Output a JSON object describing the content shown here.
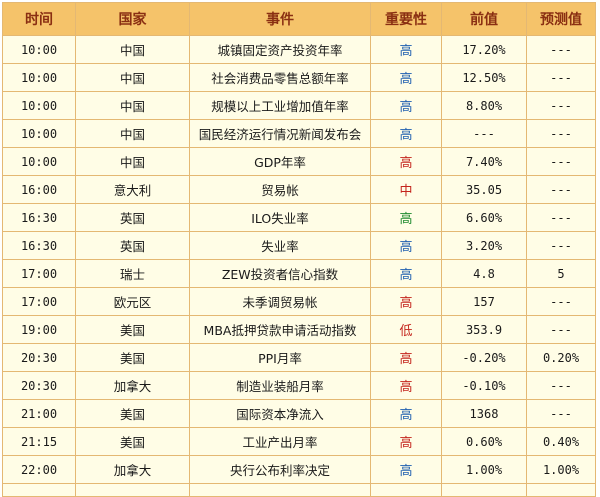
{
  "headers": {
    "time": "时间",
    "country": "国家",
    "event": "事件",
    "importance": "重要性",
    "previous": "前值",
    "forecast": "预测值"
  },
  "importance_colors": {
    "高-blue": "#1f5fb0",
    "高-red": "#c4241c",
    "高-green": "#1e8a2e",
    "中": "#c4241c",
    "低": "#c4241c"
  },
  "rows": [
    {
      "time": "10:00",
      "country": "中国",
      "event": "城镇固定资产投资年率",
      "importance": "高",
      "importance_color": "#1f5fb0",
      "previous": "17.20%",
      "forecast": "---"
    },
    {
      "time": "10:00",
      "country": "中国",
      "event": "社会消费品零售总额年率",
      "importance": "高",
      "importance_color": "#1f5fb0",
      "previous": "12.50%",
      "forecast": "---"
    },
    {
      "time": "10:00",
      "country": "中国",
      "event": "规模以上工业增加值年率",
      "importance": "高",
      "importance_color": "#1f5fb0",
      "previous": "8.80%",
      "forecast": "---"
    },
    {
      "time": "10:00",
      "country": "中国",
      "event": "国民经济运行情况新闻发布会",
      "importance": "高",
      "importance_color": "#1f5fb0",
      "previous": "---",
      "forecast": "---"
    },
    {
      "time": "10:00",
      "country": "中国",
      "event": "GDP年率",
      "importance": "高",
      "importance_color": "#c4241c",
      "previous": "7.40%",
      "forecast": "---"
    },
    {
      "time": "16:00",
      "country": "意大利",
      "event": "贸易帐",
      "importance": "中",
      "importance_color": "#c4241c",
      "previous": "35.05",
      "forecast": "---"
    },
    {
      "time": "16:30",
      "country": "英国",
      "event": "ILO失业率",
      "importance": "高",
      "importance_color": "#1e8a2e",
      "previous": "6.60%",
      "forecast": "---"
    },
    {
      "time": "16:30",
      "country": "英国",
      "event": "失业率",
      "importance": "高",
      "importance_color": "#1f5fb0",
      "previous": "3.20%",
      "forecast": "---"
    },
    {
      "time": "17:00",
      "country": "瑞士",
      "event": "ZEW投资者信心指数",
      "importance": "高",
      "importance_color": "#1f5fb0",
      "previous": "4.8",
      "forecast": "5"
    },
    {
      "time": "17:00",
      "country": "欧元区",
      "event": "未季调贸易帐",
      "importance": "高",
      "importance_color": "#c4241c",
      "previous": "157",
      "forecast": "---"
    },
    {
      "time": "19:00",
      "country": "美国",
      "event": "MBA抵押贷款申请活动指数",
      "importance": "低",
      "importance_color": "#c4241c",
      "previous": "353.9",
      "forecast": "---"
    },
    {
      "time": "20:30",
      "country": "美国",
      "event": "PPI月率",
      "importance": "高",
      "importance_color": "#c4241c",
      "previous": "-0.20%",
      "forecast": "0.20%"
    },
    {
      "time": "20:30",
      "country": "加拿大",
      "event": "制造业装船月率",
      "importance": "高",
      "importance_color": "#c4241c",
      "previous": "-0.10%",
      "forecast": "---"
    },
    {
      "time": "21:00",
      "country": "美国",
      "event": "国际资本净流入",
      "importance": "高",
      "importance_color": "#1f5fb0",
      "previous": "1368",
      "forecast": "---"
    },
    {
      "time": "21:15",
      "country": "美国",
      "event": "工业产出月率",
      "importance": "高",
      "importance_color": "#c4241c",
      "previous": "0.60%",
      "forecast": "0.40%"
    },
    {
      "time": "22:00",
      "country": "加拿大",
      "event": "央行公布利率决定",
      "importance": "高",
      "importance_color": "#1f5fb0",
      "previous": "1.00%",
      "forecast": "1.00%"
    }
  ]
}
